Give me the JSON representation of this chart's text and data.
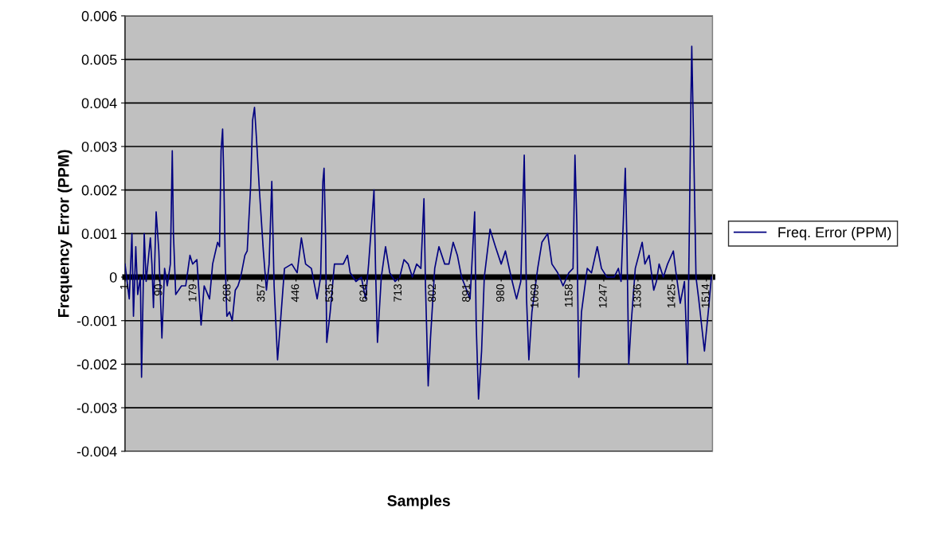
{
  "chart_data": {
    "type": "line",
    "xlabel": "Samples",
    "ylabel": "Frequency Error (PPM)",
    "xlim": [
      1,
      1530
    ],
    "xticks": [
      1,
      90,
      179,
      268,
      357,
      446,
      535,
      624,
      713,
      802,
      891,
      980,
      1069,
      1158,
      1247,
      1336,
      1425,
      1514
    ],
    "ylim": [
      -0.004,
      0.006
    ],
    "yticks": [
      -0.004,
      -0.003,
      -0.002,
      -0.001,
      0,
      0.001,
      0.002,
      0.003,
      0.004,
      0.005,
      0.006
    ],
    "grid": "y",
    "legend": "right",
    "marker": "none",
    "line_style": "solid",
    "series": [
      {
        "name": "Freq. Error (PPM)",
        "color": "#000080",
        "x": [
          1,
          12,
          19,
          23,
          29,
          34,
          41,
          44,
          51,
          56,
          67,
          71,
          75,
          82,
          89,
          97,
          104,
          111,
          119,
          124,
          127,
          133,
          148,
          159,
          170,
          177,
          188,
          199,
          207,
          221,
          229,
          242,
          247,
          251,
          255,
          258,
          262,
          266,
          273,
          280,
          288,
          295,
          302,
          313,
          319,
          328,
          333,
          338,
          343,
          350,
          361,
          369,
          376,
          383,
          389,
          398,
          405,
          416,
          435,
          449,
          460,
          471,
          486,
          501,
          510,
          516,
          519,
          523,
          526,
          535,
          546,
          557,
          569,
          580,
          587,
          602,
          616,
          627,
          635,
          649,
          653,
          658,
          668,
          679,
          690,
          704,
          716,
          727,
          738,
          749,
          760,
          771,
          779,
          783,
          790,
          796,
          807,
          818,
          833,
          844,
          855,
          866,
          877,
          899,
          911,
          915,
          921,
          929,
          936,
          951,
          965,
          980,
          991,
          1006,
          1017,
          1020,
          1031,
          1040,
          1046,
          1052,
          1060,
          1075,
          1086,
          1101,
          1112,
          1127,
          1141,
          1156,
          1167,
          1172,
          1177,
          1182,
          1189,
          1204,
          1215,
          1230,
          1241,
          1255,
          1274,
          1285,
          1292,
          1303,
          1307,
          1312,
          1318,
          1329,
          1347,
          1354,
          1365,
          1377,
          1384,
          1391,
          1402,
          1413,
          1428,
          1435,
          1446,
          1457,
          1465,
          1470,
          1474,
          1476,
          1481,
          1487,
          1494,
          1509,
          1520,
          1527
        ],
        "values": [
          0.0003,
          -0.0005,
          0.001,
          -0.0009,
          0.0007,
          -0.0004,
          0,
          -0.0023,
          0.001,
          -0.0001,
          0.0009,
          0.0003,
          -0.0007,
          0.0015,
          0.0006,
          -0.0014,
          0.0002,
          -0.0002,
          0.0003,
          0.0029,
          0.001,
          -0.0004,
          -0.0002,
          -0.0002,
          0.0005,
          0.0003,
          0.0004,
          -0.0011,
          -0.0002,
          -0.0005,
          0.0003,
          0.0008,
          0.0007,
          0.0029,
          0.0034,
          0.0023,
          0.0003,
          -0.0009,
          -0.0008,
          -0.001,
          -0.0003,
          -0.0002,
          0,
          0.0005,
          0.0006,
          0.0021,
          0.0036,
          0.0039,
          0.0032,
          0.0021,
          0.0006,
          -0.0003,
          0.0003,
          0.0022,
          -0.0002,
          -0.0019,
          -0.0011,
          0.0002,
          0.0003,
          0.0001,
          0.0009,
          0.0003,
          0.0002,
          -0.0005,
          0,
          0.0022,
          0.0025,
          0.0009,
          -0.0015,
          -0.0008,
          0.0003,
          0.0003,
          0.0003,
          0.0005,
          0.0001,
          -0.0001,
          0,
          -0.0005,
          0.0003,
          0.002,
          0.0002,
          -0.0015,
          0,
          0.0007,
          0.0001,
          -0.0001,
          0,
          0.0004,
          0.0003,
          0,
          0.0003,
          0.0002,
          0.0018,
          -0.0002,
          -0.0025,
          -0.0014,
          0.0002,
          0.0007,
          0.0003,
          0.0003,
          0.0008,
          0.0005,
          0,
          -0.0005,
          0.0015,
          -0.0011,
          -0.0028,
          -0.0017,
          0,
          0.0011,
          0.0007,
          0.0003,
          0.0006,
          0,
          -0.0004,
          -0.0005,
          -0.0001,
          0.0028,
          -0.0005,
          -0.0019,
          -0.0008,
          0.0002,
          0.0008,
          0.001,
          0.0003,
          0.0001,
          -0.0002,
          0.0001,
          0.0002,
          0.0028,
          0.0012,
          -0.0023,
          -0.0008,
          0.0002,
          0.0001,
          0.0007,
          0.0002,
          0,
          0,
          0.0002,
          -0.0001,
          0.0025,
          0.0009,
          -0.002,
          -0.0011,
          0.0002,
          0.0008,
          0.0003,
          0.0005,
          -0.0003,
          -0.0001,
          0.0003,
          0,
          0.0003,
          0.0006,
          0.0001,
          -0.0006,
          -0.0001,
          -0.002,
          0.0013,
          0.0042,
          0.0053,
          0.003,
          0,
          -0.0005,
          -0.0017,
          -0.0007,
          0
        ]
      }
    ]
  }
}
